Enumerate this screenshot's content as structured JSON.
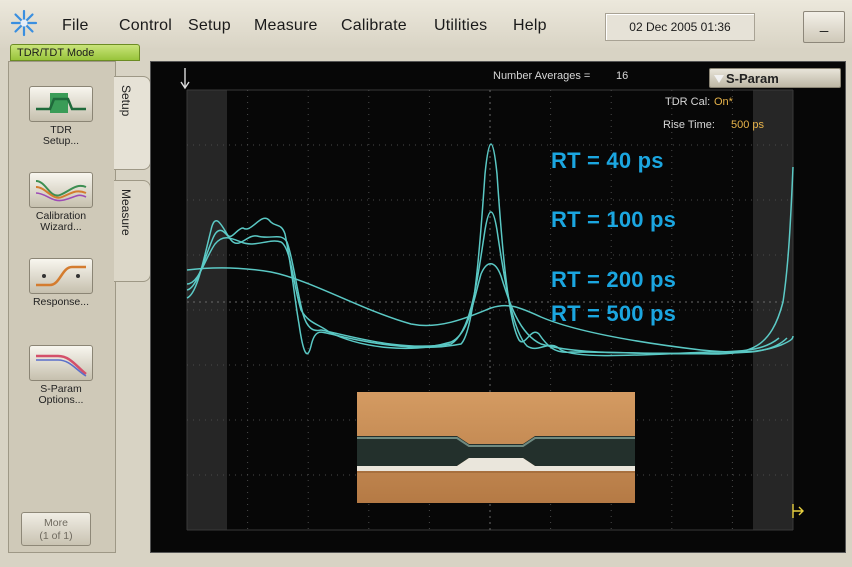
{
  "menubar": {
    "items": [
      "File",
      "Control",
      "Setup",
      "Measure",
      "Calibrate",
      "Utilities",
      "Help"
    ],
    "datetime": "02 Dec 2005  01:36",
    "minimize_label": "_"
  },
  "mode_tab": "TDR/TDT Mode",
  "left_panel": {
    "buttons": [
      {
        "label": "TDR\nSetup...",
        "icon": "tdr-setup-icon"
      },
      {
        "label": "Calibration\nWizard...",
        "icon": "calibration-wizard-icon"
      },
      {
        "label": "Response...",
        "icon": "response-icon"
      },
      {
        "label": "S-Param\nOptions...",
        "icon": "s-param-options-icon"
      }
    ],
    "more_label": "More\n(1 of 1)"
  },
  "side_tabs": [
    "Setup",
    "Measure"
  ],
  "scope": {
    "number_averages_label": "Number Averages =",
    "number_averages_value": "16",
    "sparam_button": "S-Param",
    "tdr_cal_label": "TDR Cal:",
    "tdr_cal_value": "On*",
    "rise_time_label": "Rise Time:",
    "rise_time_value": "500 ps",
    "rt_labels": [
      "RT = 40 ps",
      "RT = 100 ps",
      "RT = 200 ps",
      "RT = 500 ps"
    ]
  },
  "colors": {
    "trace": "#5fd3cf",
    "rt_text": "#1ba6e0",
    "rise_time_value": "#e7b34a",
    "mode_tab": "#a9cf49"
  }
}
